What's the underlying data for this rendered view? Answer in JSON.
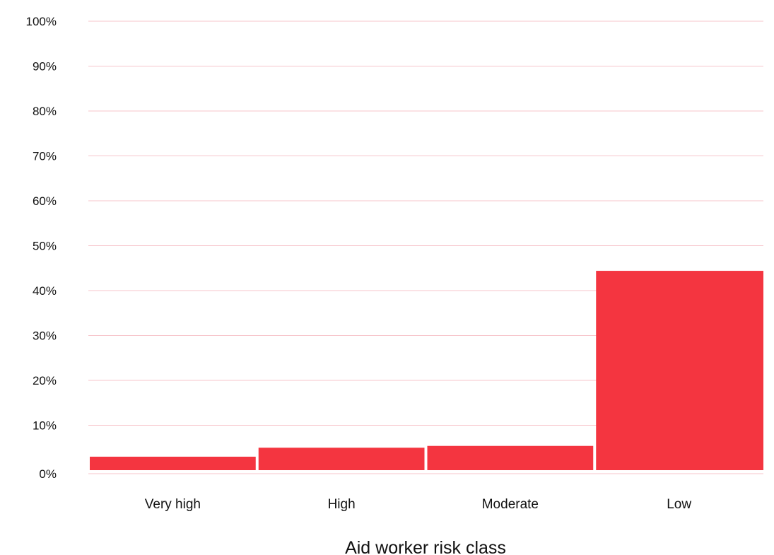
{
  "chart_data": {
    "type": "bar",
    "categories": [
      "Very high",
      "High",
      "Moderate",
      "Low"
    ],
    "values": [
      3,
      5,
      5.4,
      44.4
    ],
    "xlabel": "Aid worker risk class",
    "ylabel": "",
    "ylim": [
      0,
      100
    ],
    "y_ticks": [
      "0%",
      "10%",
      "20%",
      "30%",
      "40%",
      "50%",
      "60%",
      "70%",
      "80%",
      "90%",
      "100%"
    ],
    "grid": true,
    "colors": {
      "bar": "#f43540",
      "grid": "#f7c5cb",
      "baseline": "#f7c5cb"
    }
  }
}
